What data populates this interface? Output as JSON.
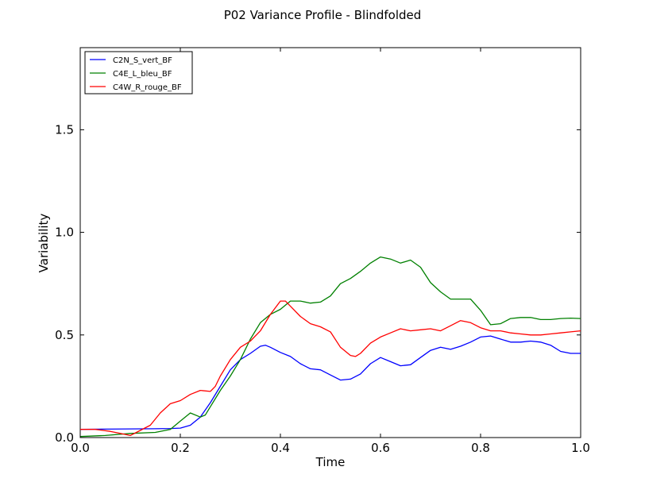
{
  "chart_data": {
    "type": "line",
    "title": "P02 Variance Profile - Blindfolded",
    "xlabel": "Time",
    "ylabel": "Variability",
    "xlim": [
      0,
      1
    ],
    "ylim": [
      0,
      1.9
    ],
    "xticks": [
      0.0,
      0.2,
      0.4,
      0.6,
      0.8,
      1.0
    ],
    "xtick_labels": [
      "0.0",
      "0.2",
      "0.4",
      "0.6",
      "0.8",
      "1.0"
    ],
    "yticks": [
      0.0,
      0.5,
      1.0,
      1.5
    ],
    "ytick_labels": [
      "0.0",
      "0.5",
      "1.0",
      "1.5"
    ],
    "grid": false,
    "legend_position": "top-left",
    "series": [
      {
        "name": "C2N_S_vert_BF",
        "color": "#0000ff",
        "points": [
          [
            0,
            0.04
          ],
          [
            0.05,
            0.041
          ],
          [
            0.1,
            0.042
          ],
          [
            0.15,
            0.043
          ],
          [
            0.18,
            0.044
          ],
          [
            0.2,
            0.046
          ],
          [
            0.22,
            0.06
          ],
          [
            0.24,
            0.1
          ],
          [
            0.26,
            0.17
          ],
          [
            0.28,
            0.25
          ],
          [
            0.3,
            0.33
          ],
          [
            0.32,
            0.38
          ],
          [
            0.34,
            0.41
          ],
          [
            0.36,
            0.445
          ],
          [
            0.37,
            0.45
          ],
          [
            0.38,
            0.44
          ],
          [
            0.4,
            0.415
          ],
          [
            0.42,
            0.395
          ],
          [
            0.44,
            0.36
          ],
          [
            0.46,
            0.335
          ],
          [
            0.48,
            0.33
          ],
          [
            0.5,
            0.305
          ],
          [
            0.52,
            0.28
          ],
          [
            0.54,
            0.285
          ],
          [
            0.56,
            0.31
          ],
          [
            0.58,
            0.36
          ],
          [
            0.6,
            0.39
          ],
          [
            0.62,
            0.37
          ],
          [
            0.64,
            0.35
          ],
          [
            0.66,
            0.355
          ],
          [
            0.68,
            0.39
          ],
          [
            0.7,
            0.425
          ],
          [
            0.72,
            0.44
          ],
          [
            0.74,
            0.43
          ],
          [
            0.76,
            0.445
          ],
          [
            0.78,
            0.465
          ],
          [
            0.8,
            0.49
          ],
          [
            0.82,
            0.495
          ],
          [
            0.84,
            0.48
          ],
          [
            0.86,
            0.465
          ],
          [
            0.88,
            0.465
          ],
          [
            0.9,
            0.47
          ],
          [
            0.92,
            0.465
          ],
          [
            0.94,
            0.45
          ],
          [
            0.96,
            0.42
          ],
          [
            0.98,
            0.41
          ],
          [
            1.0,
            0.41
          ]
        ]
      },
      {
        "name": "C4E_L_bleu_BF",
        "color": "#008000",
        "points": [
          [
            0,
            0.005
          ],
          [
            0.05,
            0.01
          ],
          [
            0.1,
            0.02
          ],
          [
            0.15,
            0.025
          ],
          [
            0.18,
            0.04
          ],
          [
            0.2,
            0.08
          ],
          [
            0.22,
            0.12
          ],
          [
            0.24,
            0.1
          ],
          [
            0.25,
            0.11
          ],
          [
            0.26,
            0.15
          ],
          [
            0.28,
            0.23
          ],
          [
            0.3,
            0.3
          ],
          [
            0.32,
            0.38
          ],
          [
            0.34,
            0.48
          ],
          [
            0.36,
            0.56
          ],
          [
            0.38,
            0.6
          ],
          [
            0.4,
            0.625
          ],
          [
            0.42,
            0.665
          ],
          [
            0.44,
            0.665
          ],
          [
            0.46,
            0.655
          ],
          [
            0.48,
            0.66
          ],
          [
            0.5,
            0.69
          ],
          [
            0.52,
            0.75
          ],
          [
            0.54,
            0.775
          ],
          [
            0.56,
            0.81
          ],
          [
            0.58,
            0.85
          ],
          [
            0.6,
            0.88
          ],
          [
            0.62,
            0.87
          ],
          [
            0.64,
            0.85
          ],
          [
            0.66,
            0.865
          ],
          [
            0.68,
            0.83
          ],
          [
            0.7,
            0.755
          ],
          [
            0.72,
            0.71
          ],
          [
            0.74,
            0.675
          ],
          [
            0.76,
            0.675
          ],
          [
            0.78,
            0.675
          ],
          [
            0.8,
            0.62
          ],
          [
            0.82,
            0.55
          ],
          [
            0.84,
            0.555
          ],
          [
            0.86,
            0.58
          ],
          [
            0.88,
            0.585
          ],
          [
            0.9,
            0.585
          ],
          [
            0.92,
            0.575
          ],
          [
            0.94,
            0.575
          ],
          [
            0.96,
            0.58
          ],
          [
            0.98,
            0.582
          ],
          [
            1.0,
            0.58
          ]
        ]
      },
      {
        "name": "C4W_R_rouge_BF",
        "color": "#ff0000",
        "points": [
          [
            0,
            0.04
          ],
          [
            0.03,
            0.04
          ],
          [
            0.06,
            0.03
          ],
          [
            0.08,
            0.02
          ],
          [
            0.1,
            0.01
          ],
          [
            0.12,
            0.035
          ],
          [
            0.14,
            0.06
          ],
          [
            0.16,
            0.12
          ],
          [
            0.18,
            0.165
          ],
          [
            0.2,
            0.18
          ],
          [
            0.22,
            0.21
          ],
          [
            0.24,
            0.23
          ],
          [
            0.26,
            0.225
          ],
          [
            0.27,
            0.25
          ],
          [
            0.28,
            0.3
          ],
          [
            0.3,
            0.38
          ],
          [
            0.32,
            0.44
          ],
          [
            0.34,
            0.47
          ],
          [
            0.36,
            0.52
          ],
          [
            0.38,
            0.6
          ],
          [
            0.4,
            0.665
          ],
          [
            0.41,
            0.665
          ],
          [
            0.42,
            0.64
          ],
          [
            0.44,
            0.59
          ],
          [
            0.46,
            0.555
          ],
          [
            0.48,
            0.54
          ],
          [
            0.5,
            0.515
          ],
          [
            0.52,
            0.44
          ],
          [
            0.54,
            0.4
          ],
          [
            0.55,
            0.395
          ],
          [
            0.56,
            0.41
          ],
          [
            0.58,
            0.46
          ],
          [
            0.6,
            0.49
          ],
          [
            0.62,
            0.51
          ],
          [
            0.64,
            0.53
          ],
          [
            0.66,
            0.52
          ],
          [
            0.68,
            0.525
          ],
          [
            0.7,
            0.53
          ],
          [
            0.72,
            0.52
          ],
          [
            0.74,
            0.545
          ],
          [
            0.76,
            0.57
          ],
          [
            0.78,
            0.56
          ],
          [
            0.8,
            0.535
          ],
          [
            0.82,
            0.52
          ],
          [
            0.84,
            0.52
          ],
          [
            0.86,
            0.51
          ],
          [
            0.88,
            0.505
          ],
          [
            0.9,
            0.5
          ],
          [
            0.92,
            0.5
          ],
          [
            0.94,
            0.505
          ],
          [
            0.96,
            0.51
          ],
          [
            0.98,
            0.515
          ],
          [
            1.0,
            0.52
          ]
        ]
      }
    ]
  }
}
